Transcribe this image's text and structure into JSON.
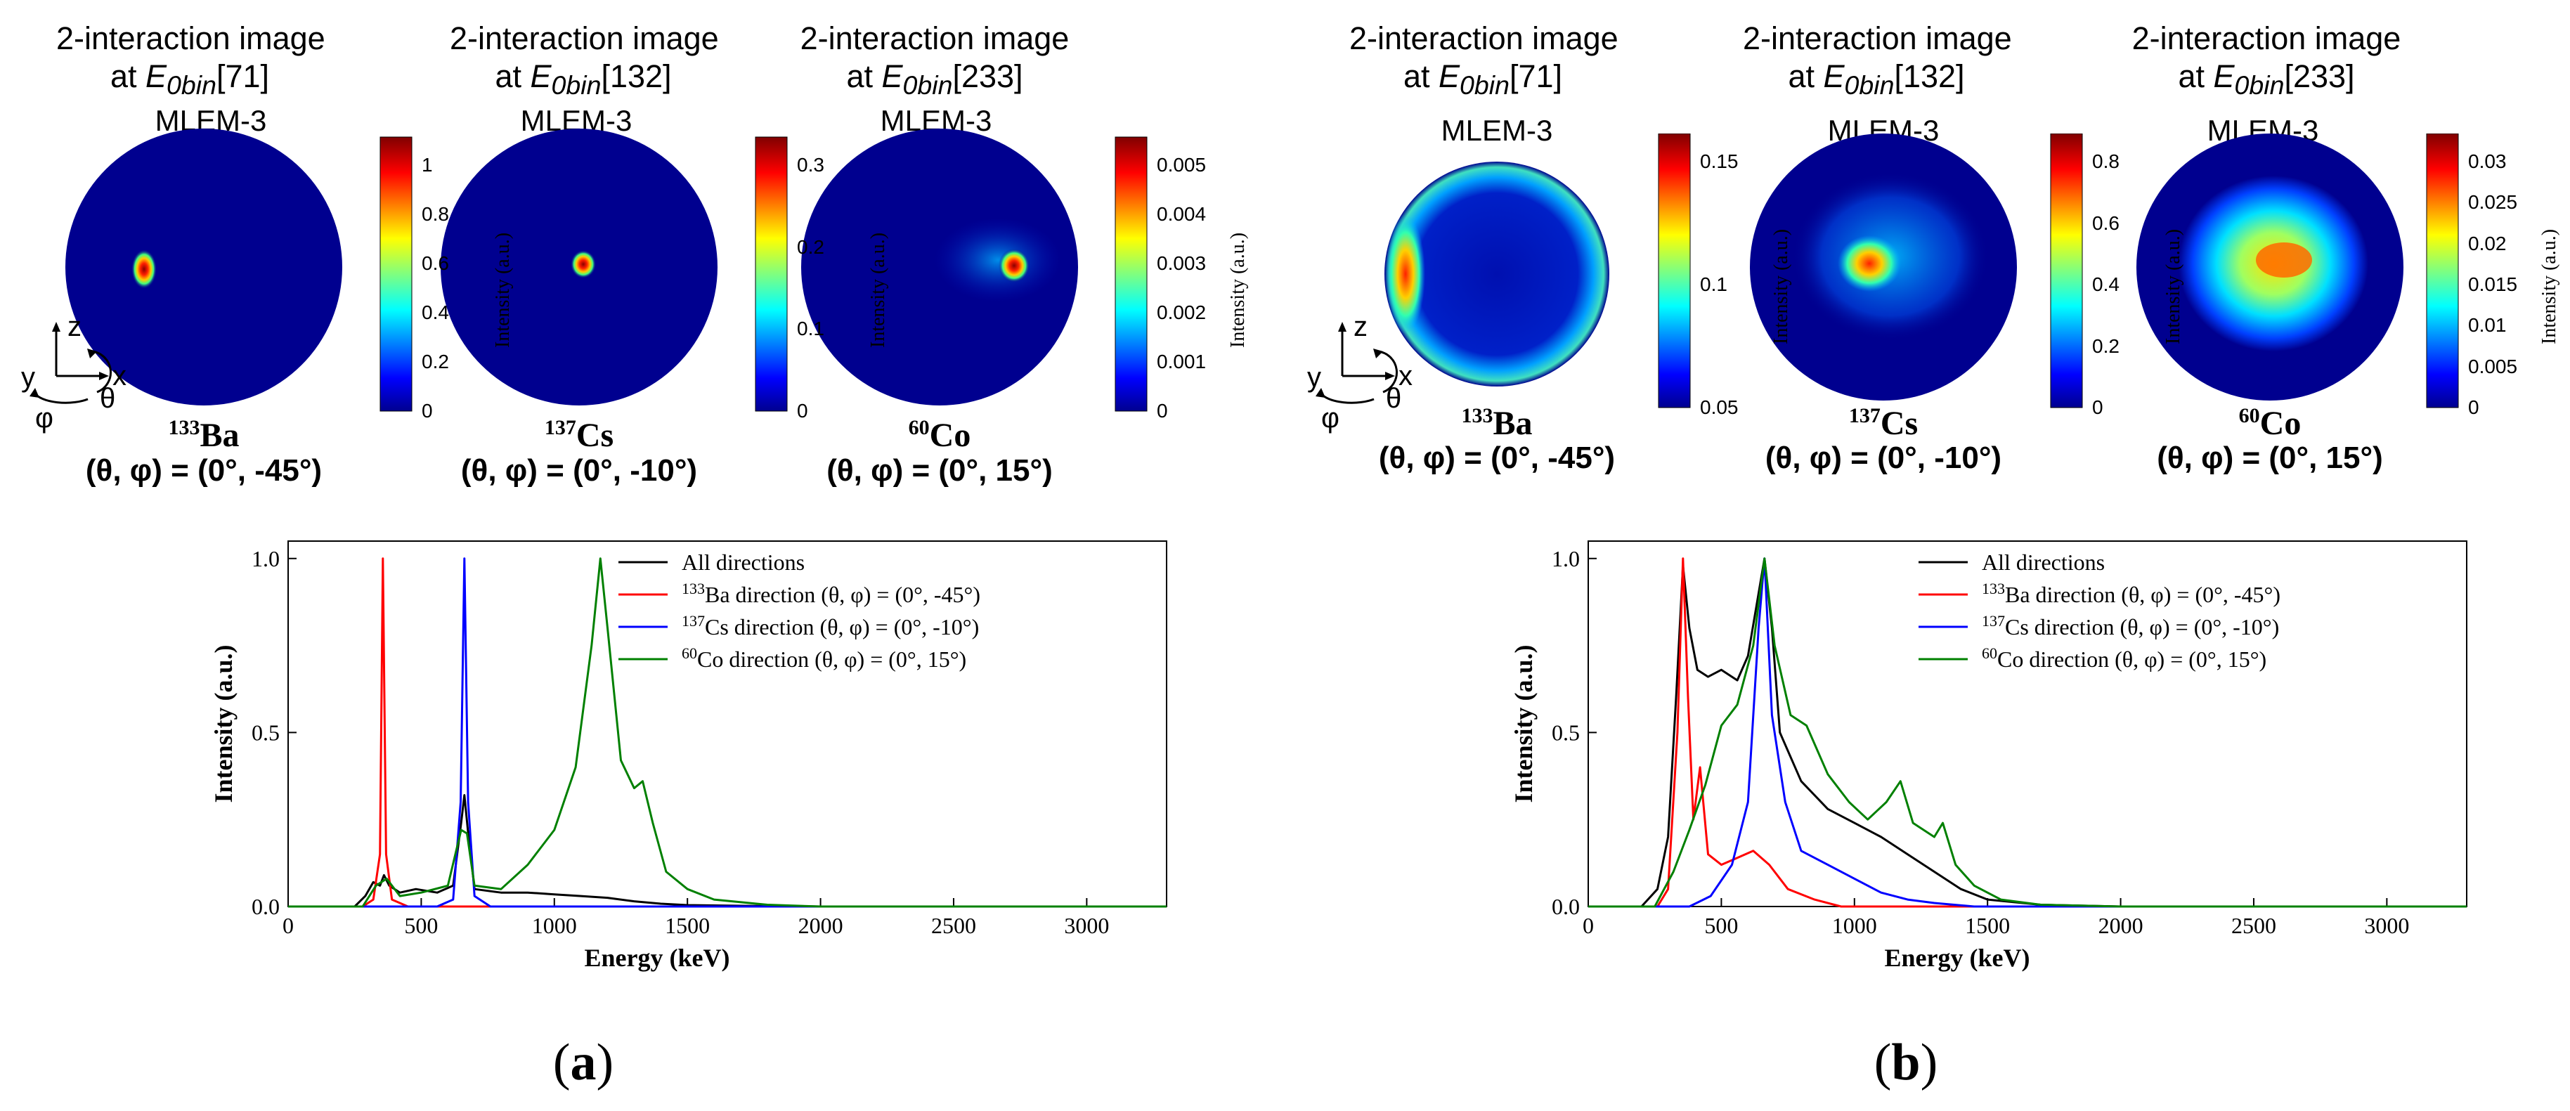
{
  "panels": [
    {
      "label_pre": "(",
      "label": "a",
      "label_post": ")",
      "images": [
        {
          "title1": "2-interaction image",
          "title2_pre": "at ",
          "title2_E": "E",
          "title2_sub": "0bin",
          "title2_post": "[71]",
          "method": "MLEM-3",
          "iso_mass": "133",
          "iso_sym": "Ba",
          "direction": "(θ, φ) = (0°, -45°)",
          "cbar_ticks": [
            "0",
            "0.2",
            "0.4",
            "0.6",
            "0.8",
            "1"
          ],
          "cbar_label": "Intensity (a.u.)"
        },
        {
          "title1": "2-interaction image",
          "title2_pre": "at ",
          "title2_E": "E",
          "title2_sub": "0bin",
          "title2_post": "[132]",
          "method": "MLEM-3",
          "iso_mass": "137",
          "iso_sym": "Cs",
          "direction": "(θ, φ) = (0°, -10°)",
          "cbar_ticks": [
            "0",
            "0.1",
            "0.2",
            "0.3"
          ],
          "cbar_label": "Intensity (a.u.)"
        },
        {
          "title1": "2-interaction image",
          "title2_pre": "at ",
          "title2_E": "E",
          "title2_sub": "0bin",
          "title2_post": "[233]",
          "method": "MLEM-3",
          "iso_mass": "60",
          "iso_sym": "Co",
          "direction": "(θ, φ) = (0°, 15°)",
          "cbar_ticks": [
            "0",
            "0.001",
            "0.002",
            "0.003",
            "0.004",
            "0.005"
          ],
          "cbar_label": "Intensity (a.u.)"
        }
      ]
    },
    {
      "label_pre": "(",
      "label": "b",
      "label_post": ")",
      "images": [
        {
          "title1": "2-interaction image",
          "title2_pre": "at ",
          "title2_E": "E",
          "title2_sub": "0bin",
          "title2_post": "[71]",
          "method": "MLEM-3",
          "iso_mass": "133",
          "iso_sym": "Ba",
          "direction": "(θ, φ) = (0°, -45°)",
          "cbar_ticks": [
            "0.05",
            "0.1",
            "0.15"
          ],
          "cbar_label": "Intensity (a.u.)"
        },
        {
          "title1": "2-interaction image",
          "title2_pre": "at ",
          "title2_E": "E",
          "title2_sub": "0bin",
          "title2_post": "[132]",
          "method": "MLEM-3",
          "iso_mass": "137",
          "iso_sym": "Cs",
          "direction": "(θ, φ) = (0°, -10°)",
          "cbar_ticks": [
            "0",
            "0.2",
            "0.4",
            "0.6",
            "0.8"
          ],
          "cbar_label": "Intensity (a.u.)"
        },
        {
          "title1": "2-interaction image",
          "title2_pre": "at ",
          "title2_E": "E",
          "title2_sub": "0bin",
          "title2_post": "[233]",
          "method": "MLEM-3",
          "iso_mass": "60",
          "iso_sym": "Co",
          "direction": "(θ, φ) = (0°, 15°)",
          "cbar_ticks": [
            "0",
            "0.005",
            "0.01",
            "0.015",
            "0.02",
            "0.025",
            "0.03"
          ],
          "cbar_label": "Intensity (a.u.)"
        }
      ]
    }
  ],
  "axes_icon": {
    "z": "z",
    "y": "y",
    "x": "x",
    "theta": "θ",
    "phi": "φ"
  },
  "colors": {
    "all": "#000000",
    "ba": "#ff0000",
    "cs": "#0000ff",
    "co": "#008000"
  },
  "chart_data": [
    {
      "type": "line",
      "xlabel": "Energy (keV)",
      "ylabel": "Intensity (a.u.)",
      "xlim": [
        0,
        3300
      ],
      "ylim": [
        0,
        1.05
      ],
      "xticks": [
        0,
        500,
        1000,
        1500,
        2000,
        2500,
        3000
      ],
      "xtick_labels": [
        "0",
        "500",
        "1000",
        "1500",
        "2000",
        "2500",
        "3000"
      ],
      "yticks": [
        0,
        0.5,
        1.0
      ],
      "ytick_labels": [
        "0.0",
        "0.5",
        "1.0"
      ],
      "legend": "top-right",
      "series": [
        {
          "key": "all",
          "legend_text": "All directions",
          "sup": "",
          "legend_rest": "",
          "points": [
            [
              0,
              0
            ],
            [
              250,
              0
            ],
            [
              290,
              0.03
            ],
            [
              320,
              0.07
            ],
            [
              345,
              0.06
            ],
            [
              360,
              0.09
            ],
            [
              380,
              0.06
            ],
            [
              420,
              0.04
            ],
            [
              480,
              0.05
            ],
            [
              560,
              0.04
            ],
            [
              620,
              0.06
            ],
            [
              650,
              0.24
            ],
            [
              662,
              0.32
            ],
            [
              675,
              0.22
            ],
            [
              700,
              0.05
            ],
            [
              800,
              0.04
            ],
            [
              900,
              0.04
            ],
            [
              1000,
              0.035
            ],
            [
              1100,
              0.03
            ],
            [
              1200,
              0.025
            ],
            [
              1300,
              0.015
            ],
            [
              1400,
              0.008
            ],
            [
              1500,
              0.004
            ],
            [
              1700,
              0.002
            ],
            [
              2000,
              0
            ],
            [
              3300,
              0
            ]
          ]
        },
        {
          "key": "ba",
          "legend_text": "",
          "sup": "133",
          "legend_rest": "Ba direction (θ, φ) = (0°, -45°)",
          "points": [
            [
              0,
              0
            ],
            [
              280,
              0
            ],
            [
              320,
              0.02
            ],
            [
              345,
              0.15
            ],
            [
              356,
              1.0
            ],
            [
              368,
              0.15
            ],
            [
              390,
              0.02
            ],
            [
              450,
              0
            ],
            [
              3300,
              0
            ]
          ]
        },
        {
          "key": "cs",
          "legend_text": "",
          "sup": "137",
          "legend_rest": "Cs direction (θ, φ) = (0°, -10°)",
          "points": [
            [
              0,
              0
            ],
            [
              560,
              0
            ],
            [
              620,
              0.02
            ],
            [
              648,
              0.3
            ],
            [
              662,
              1.0
            ],
            [
              676,
              0.3
            ],
            [
              700,
              0.03
            ],
            [
              760,
              0
            ],
            [
              3300,
              0
            ]
          ]
        },
        {
          "key": "co",
          "legend_text": "",
          "sup": "60",
          "legend_rest": "Co direction (θ, φ) = (0°, 15°)",
          "points": [
            [
              0,
              0
            ],
            [
              280,
              0
            ],
            [
              330,
              0.06
            ],
            [
              370,
              0.08
            ],
            [
              420,
              0.03
            ],
            [
              500,
              0.04
            ],
            [
              600,
              0.06
            ],
            [
              650,
              0.22
            ],
            [
              672,
              0.21
            ],
            [
              700,
              0.06
            ],
            [
              800,
              0.05
            ],
            [
              900,
              0.12
            ],
            [
              1000,
              0.22
            ],
            [
              1080,
              0.4
            ],
            [
              1140,
              0.75
            ],
            [
              1173,
              1.0
            ],
            [
              1200,
              0.8
            ],
            [
              1250,
              0.42
            ],
            [
              1300,
              0.34
            ],
            [
              1332,
              0.36
            ],
            [
              1370,
              0.24
            ],
            [
              1420,
              0.1
            ],
            [
              1500,
              0.05
            ],
            [
              1600,
              0.02
            ],
            [
              1800,
              0.005
            ],
            [
              2000,
              0
            ],
            [
              3300,
              0
            ]
          ]
        }
      ]
    },
    {
      "type": "line",
      "xlabel": "Energy (keV)",
      "ylabel": "Intensity (a.u.)",
      "xlim": [
        0,
        3300
      ],
      "ylim": [
        0,
        1.05
      ],
      "xticks": [
        0,
        500,
        1000,
        1500,
        2000,
        2500,
        3000
      ],
      "xtick_labels": [
        "0",
        "500",
        "1000",
        "1500",
        "2000",
        "2500",
        "3000"
      ],
      "yticks": [
        0,
        0.5,
        1.0
      ],
      "ytick_labels": [
        "0.0",
        "0.5",
        "1.0"
      ],
      "legend": "top-right",
      "series": [
        {
          "key": "all",
          "legend_text": "All directions",
          "sup": "",
          "legend_rest": "",
          "points": [
            [
              0,
              0
            ],
            [
              200,
              0
            ],
            [
              260,
              0.05
            ],
            [
              300,
              0.2
            ],
            [
              330,
              0.6
            ],
            [
              356,
              0.98
            ],
            [
              380,
              0.8
            ],
            [
              410,
              0.68
            ],
            [
              450,
              0.66
            ],
            [
              500,
              0.68
            ],
            [
              560,
              0.65
            ],
            [
              600,
              0.72
            ],
            [
              640,
              0.9
            ],
            [
              662,
              1.0
            ],
            [
              690,
              0.8
            ],
            [
              720,
              0.5
            ],
            [
              800,
              0.36
            ],
            [
              900,
              0.28
            ],
            [
              1000,
              0.24
            ],
            [
              1100,
              0.2
            ],
            [
              1200,
              0.15
            ],
            [
              1300,
              0.1
            ],
            [
              1400,
              0.05
            ],
            [
              1500,
              0.02
            ],
            [
              1700,
              0.005
            ],
            [
              2000,
              0
            ],
            [
              3300,
              0
            ]
          ]
        },
        {
          "key": "ba",
          "legend_text": "",
          "sup": "133",
          "legend_rest": "Ba direction (θ, φ) = (0°, -45°)",
          "points": [
            [
              0,
              0
            ],
            [
              260,
              0
            ],
            [
              300,
              0.05
            ],
            [
              335,
              0.5
            ],
            [
              356,
              1.0
            ],
            [
              375,
              0.6
            ],
            [
              395,
              0.25
            ],
            [
              420,
              0.4
            ],
            [
              450,
              0.15
            ],
            [
              500,
              0.12
            ],
            [
              560,
              0.14
            ],
            [
              620,
              0.16
            ],
            [
              680,
              0.12
            ],
            [
              750,
              0.05
            ],
            [
              850,
              0.02
            ],
            [
              950,
              0
            ],
            [
              3300,
              0
            ]
          ]
        },
        {
          "key": "cs",
          "legend_text": "",
          "sup": "137",
          "legend_rest": "Cs direction (θ, φ) = (0°, -10°)",
          "points": [
            [
              0,
              0
            ],
            [
              380,
              0
            ],
            [
              460,
              0.03
            ],
            [
              540,
              0.12
            ],
            [
              600,
              0.3
            ],
            [
              640,
              0.8
            ],
            [
              662,
              1.0
            ],
            [
              690,
              0.55
            ],
            [
              740,
              0.3
            ],
            [
              800,
              0.16
            ],
            [
              900,
              0.12
            ],
            [
              1000,
              0.08
            ],
            [
              1100,
              0.04
            ],
            [
              1200,
              0.02
            ],
            [
              1300,
              0.01
            ],
            [
              1450,
              0
            ],
            [
              3300,
              0
            ]
          ]
        },
        {
          "key": "co",
          "legend_text": "",
          "sup": "60",
          "legend_rest": "Co direction (θ, φ) = (0°, 15°)",
          "points": [
            [
              0,
              0
            ],
            [
              250,
              0
            ],
            [
              320,
              0.1
            ],
            [
              380,
              0.22
            ],
            [
              440,
              0.35
            ],
            [
              500,
              0.52
            ],
            [
              560,
              0.58
            ],
            [
              620,
              0.75
            ],
            [
              662,
              1.0
            ],
            [
              700,
              0.75
            ],
            [
              760,
              0.55
            ],
            [
              820,
              0.52
            ],
            [
              900,
              0.38
            ],
            [
              980,
              0.3
            ],
            [
              1050,
              0.25
            ],
            [
              1120,
              0.3
            ],
            [
              1173,
              0.36
            ],
            [
              1220,
              0.24
            ],
            [
              1300,
              0.2
            ],
            [
              1332,
              0.24
            ],
            [
              1380,
              0.12
            ],
            [
              1450,
              0.06
            ],
            [
              1550,
              0.02
            ],
            [
              1700,
              0.005
            ],
            [
              2000,
              0
            ],
            [
              3300,
              0
            ]
          ]
        }
      ]
    }
  ]
}
